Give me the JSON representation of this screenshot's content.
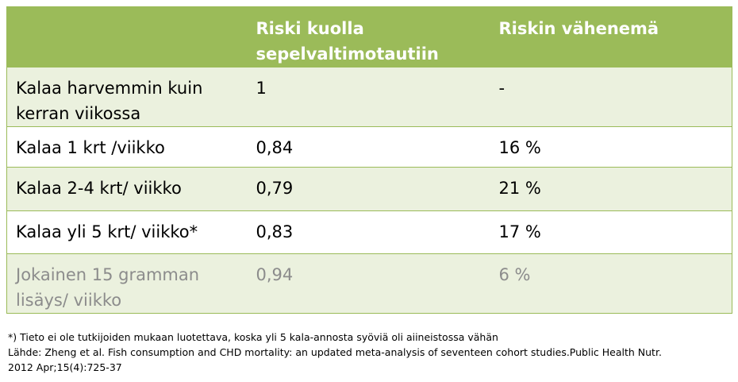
{
  "table": {
    "headers": [
      "",
      "Riski kuolla sepelvaltimotautiin",
      "Riskin vähenemä"
    ],
    "rows": [
      [
        "Kalaa harvemmin kuin kerran viikossa",
        "1",
        "-"
      ],
      [
        "Kalaa 1 krt /viikko",
        "0,84",
        "16 %"
      ],
      [
        "Kalaa 2-4 krt/ viikko",
        "0,79",
        "21 %"
      ],
      [
        "Kalaa yli 5 krt/ viikko*",
        "0,83",
        "17 %"
      ],
      [
        "Jokainen 15 gramman lisäys/ viikko",
        "0,94",
        "6 %"
      ]
    ]
  },
  "footnotes": {
    "note": "*)  Tieto ei ole tutkijoiden mukaan luotettava, koska yli 5 kala-annosta syöviä oli  aiineistossa vähän",
    "source_line1": "Lähde: Zheng et al. Fish consumption and CHD mortality: an updated meta-analysis of seventeen cohort studies.Public Health Nutr.",
    "source_line2": "2012 Apr;15(4):725-37"
  },
  "colors": {
    "header_bg": "#9bbb59",
    "band_bg": "#ebf1de",
    "muted_text": "#8c8c8c"
  }
}
